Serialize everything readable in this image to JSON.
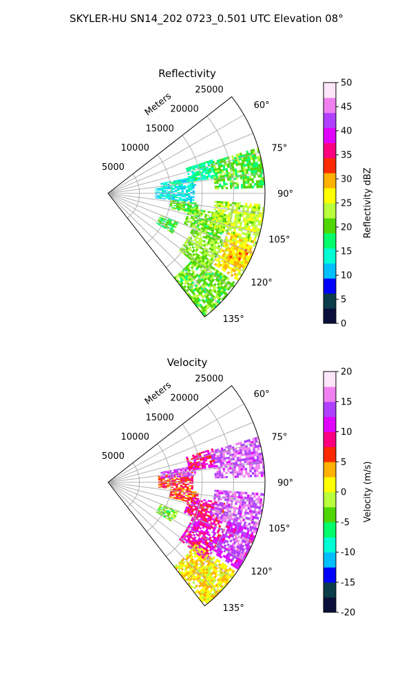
{
  "figure": {
    "suptitle": "SKYLER-HU  SN14_202  0723_0.501 UTC Elevation 08°"
  },
  "chart_data": [
    {
      "type": "heatmap",
      "subtype": "polar sector (PPI radar scan)",
      "title": "Reflectivity",
      "radial_axis_label": "Meters",
      "radial_ticks": [
        5000,
        10000,
        15000,
        20000,
        25000
      ],
      "radial_range": [
        0,
        25000
      ],
      "angle_ticks": [
        "60°",
        "75°",
        "90°",
        "105°",
        "120°",
        "135°"
      ],
      "angle_range_deg": [
        52,
        142
      ],
      "grid": true,
      "colorbar": {
        "label": "Reflectivity dBZ",
        "range": [
          0,
          50
        ],
        "ticks": [
          0,
          5,
          10,
          15,
          20,
          25,
          30,
          35,
          40,
          45,
          50
        ],
        "colormap": [
          "#0a0f3a",
          "#0b3c4a",
          "#0000ff",
          "#00bfff",
          "#00ffd5",
          "#00ff6a",
          "#4fd600",
          "#b8ff3c",
          "#ffff00",
          "#ffb000",
          "#ff2a00",
          "#ff0080",
          "#e000ff",
          "#b040ff",
          "#f080f0",
          "#fde6fa"
        ]
      },
      "regions": [
        {
          "r": [
            7500,
            13500
          ],
          "az": [
            84,
            96
          ],
          "value": 13
        },
        {
          "r": [
            8500,
            14000
          ],
          "az": [
            79,
            86
          ],
          "value": 14
        },
        {
          "r": [
            13000,
            17500
          ],
          "az": [
            72,
            82
          ],
          "value": 16
        },
        {
          "r": [
            17000,
            25500
          ],
          "az": [
            73,
            88
          ],
          "value": 20
        },
        {
          "r": [
            10000,
            14500
          ],
          "az": [
            96,
            104
          ],
          "value": 20
        },
        {
          "r": [
            9000,
            12000
          ],
          "az": [
            112,
            122
          ],
          "value": 19
        },
        {
          "r": [
            13000,
            19000
          ],
          "az": [
            100,
            112
          ],
          "value": 21
        },
        {
          "r": [
            17000,
            25500
          ],
          "az": [
            94,
            109
          ],
          "value": 24
        },
        {
          "r": [
            14500,
            20000
          ],
          "az": [
            112,
            129
          ],
          "value": 22
        },
        {
          "r": [
            20000,
            25500
          ],
          "az": [
            108,
            124
          ],
          "value": 27
        },
        {
          "r": [
            17000,
            25500
          ],
          "az": [
            125,
            142
          ],
          "value": 21
        },
        {
          "r": [
            21500,
            24500
          ],
          "az": [
            112,
            120
          ],
          "value": 29
        }
      ]
    },
    {
      "type": "heatmap",
      "subtype": "polar sector (PPI radar scan)",
      "title": "Velocity",
      "radial_axis_label": "Meters",
      "radial_ticks": [
        5000,
        10000,
        15000,
        20000,
        25000
      ],
      "radial_range": [
        0,
        25000
      ],
      "angle_ticks": [
        "60°",
        "75°",
        "90°",
        "105°",
        "120°",
        "135°"
      ],
      "angle_range_deg": [
        52,
        142
      ],
      "grid": true,
      "colorbar": {
        "label": "Velocity (m/s)",
        "range": [
          -20,
          20
        ],
        "ticks": [
          -20,
          -15,
          -10,
          -5,
          0,
          5,
          10,
          15,
          20
        ],
        "colormap": [
          "#0a0f3a",
          "#0b3c4a",
          "#0000ff",
          "#00bfff",
          "#00ffd5",
          "#00ff6a",
          "#4fd600",
          "#b8ff3c",
          "#ffff00",
          "#ffb000",
          "#ff2a00",
          "#ff0080",
          "#e000ff",
          "#b040ff",
          "#f080f0",
          "#fde6fa"
        ]
      },
      "regions": [
        {
          "r": [
            8000,
            13500
          ],
          "az": [
            83,
            96
          ],
          "value": 7
        },
        {
          "r": [
            8500,
            14000
          ],
          "az": [
            79,
            86
          ],
          "value": 14
        },
        {
          "r": [
            13000,
            17500
          ],
          "az": [
            72,
            82
          ],
          "value": 9
        },
        {
          "r": [
            17000,
            25500
          ],
          "az": [
            73,
            88
          ],
          "value": 15
        },
        {
          "r": [
            10000,
            14500
          ],
          "az": [
            96,
            104
          ],
          "value": 6
        },
        {
          "r": [
            9000,
            12000
          ],
          "az": [
            112,
            122
          ],
          "value": -3
        },
        {
          "r": [
            13000,
            19000
          ],
          "az": [
            100,
            112
          ],
          "value": 9
        },
        {
          "r": [
            17000,
            25500
          ],
          "az": [
            94,
            109
          ],
          "value": 15
        },
        {
          "r": [
            14500,
            20000
          ],
          "az": [
            112,
            129
          ],
          "value": 10
        },
        {
          "r": [
            20000,
            25500
          ],
          "az": [
            108,
            124
          ],
          "value": 12
        },
        {
          "r": [
            17000,
            25500
          ],
          "az": [
            125,
            142
          ],
          "value": 2
        },
        {
          "r": [
            21500,
            24500
          ],
          "az": [
            112,
            120
          ],
          "value": 16
        }
      ]
    }
  ]
}
